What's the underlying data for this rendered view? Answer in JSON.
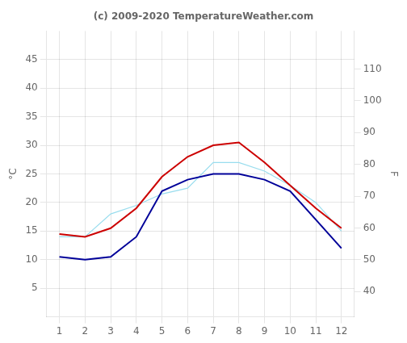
{
  "chart_data": {
    "type": "line",
    "title": "(c) 2009-2020 TemperatureWeather.com",
    "y_label": "°C",
    "y2_label": "F",
    "x": [
      1,
      2,
      3,
      4,
      5,
      6,
      7,
      8,
      9,
      10,
      11,
      12
    ],
    "series": [
      {
        "color": "#cc0000",
        "values": [
          14.5,
          14.0,
          15.5,
          19.0,
          24.5,
          28.0,
          30.0,
          30.5,
          27.0,
          23.0,
          19.0,
          15.5
        ]
      },
      {
        "color": "#000099",
        "values": [
          10.5,
          10.0,
          10.5,
          14.0,
          22.0,
          24.0,
          25.0,
          25.0,
          24.0,
          22.0,
          17.0,
          12.0
        ]
      },
      {
        "color": "#99ddee",
        "values": [
          14.0,
          14.0,
          18.0,
          19.5,
          21.5,
          22.5,
          27.0,
          27.0,
          25.5,
          23.0,
          20.0,
          15.0
        ]
      }
    ],
    "xlim": [
      0.5,
      12.5
    ],
    "xticks": [
      1,
      2,
      3,
      4,
      5,
      6,
      7,
      8,
      9,
      10,
      11,
      12
    ],
    "ylim": [
      0,
      50
    ],
    "yticks": [
      5,
      10,
      15,
      20,
      25,
      30,
      35,
      40,
      45
    ],
    "y2lim": [
      32,
      122
    ],
    "y2ticks": [
      40,
      50,
      60,
      70,
      80,
      90,
      100,
      110
    ],
    "grid": true
  }
}
